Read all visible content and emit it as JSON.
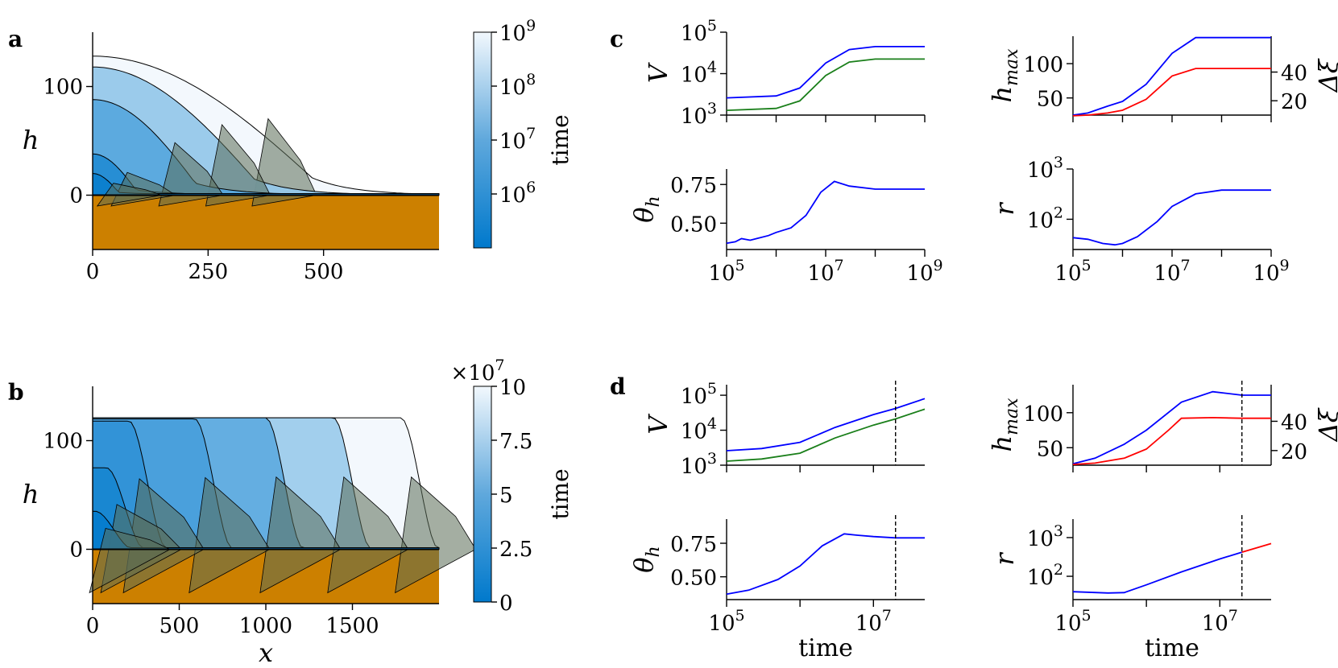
{
  "panels": {
    "a": {
      "letter": "a"
    },
    "b": {
      "letter": "b"
    },
    "c": {
      "letter": "c"
    },
    "d": {
      "letter": "d"
    }
  },
  "colors": {
    "substrate": "#CC8000",
    "blue": "#0000FF",
    "green": "#1A7F1A",
    "red": "#FF0000",
    "cmap_low": "#0079CC",
    "cmap_high": "#F2F8FD"
  },
  "chart_data": [
    {
      "id": "a",
      "type": "area",
      "xlabel": "",
      "ylabel": "h",
      "xlim": [
        0,
        750
      ],
      "ylim": [
        -50,
        150
      ],
      "xticks": [
        "0",
        "250",
        "500"
      ],
      "xtick_values": [
        0,
        250,
        500
      ],
      "yticks": [
        "0",
        "100"
      ],
      "ytick_values": [
        0,
        100
      ],
      "colorbar": {
        "label": "time",
        "scale": "log",
        "ticks": [
          "10^6",
          "10^7",
          "10^8",
          "10^9"
        ],
        "range": [
          100000,
          1000000000
        ]
      },
      "profiles": [
        {
          "time": 150000,
          "hmax": 20,
          "front": 45,
          "tail_depth": -5
        },
        {
          "time": 400000,
          "hmax": 38,
          "front": 75,
          "tail_depth": -15
        },
        {
          "time": 3000000,
          "hmax": 88,
          "front": 178,
          "tail_depth": -25
        },
        {
          "time": 30000000,
          "hmax": 118,
          "front": 280,
          "tail_depth": -35
        },
        {
          "time": 1000000000,
          "hmax": 128,
          "front": 380,
          "tail_depth": -47
        }
      ]
    },
    {
      "id": "b",
      "type": "area",
      "xlabel": "x",
      "ylabel": "h",
      "xlim": [
        0,
        2000
      ],
      "ylim": [
        -50,
        150
      ],
      "xticks": [
        "0",
        "500",
        "1000",
        "1500"
      ],
      "xtick_values": [
        0,
        500,
        1000,
        1500
      ],
      "yticks": [
        "0",
        "100"
      ],
      "ytick_values": [
        0,
        100
      ],
      "colorbar": {
        "label": "time",
        "scale": "linear",
        "multiplier": "×10^7",
        "ticks": [
          "0",
          "2.5",
          "5",
          "7.5",
          "10"
        ],
        "range": [
          0,
          10
        ]
      },
      "profiles": [
        {
          "time": 0.2,
          "hmax": 35,
          "front": 75
        },
        {
          "time": 1.0,
          "hmax": 75,
          "front": 140
        },
        {
          "time": 2.0,
          "hmax": 118,
          "front": 270
        },
        {
          "time": 3.0,
          "hmax": 120,
          "front": 650
        },
        {
          "time": 4.0,
          "hmax": 121,
          "front": 1060
        },
        {
          "time": 6.5,
          "hmax": 121,
          "front": 1450
        },
        {
          "time": 10.0,
          "hmax": 121,
          "front": 1840
        }
      ]
    },
    {
      "id": "c-V",
      "type": "line",
      "xscale": "log",
      "yscale": "log",
      "ylabel": "V",
      "xlim": [
        100000,
        1000000000
      ],
      "ylim": [
        1000,
        100000
      ],
      "yticks": [
        "10^3",
        "10^4",
        "10^5"
      ],
      "series": [
        {
          "x": [
            100000,
            1000000,
            3000000,
            10000000,
            30000000,
            100000000,
            1000000000
          ],
          "values": [
            2600,
            2900,
            4500,
            18000,
            38000,
            45000,
            45000
          ]
        },
        {
          "x": [
            100000,
            1000000,
            3000000,
            10000000,
            30000000,
            100000000,
            1000000000
          ],
          "values": [
            1300,
            1450,
            2200,
            9000,
            19000,
            22500,
            22500
          ]
        }
      ]
    },
    {
      "id": "c-hmax",
      "type": "line",
      "xscale": "log",
      "ylabel": "h_max",
      "ylabel_right": "Δξ",
      "xlim": [
        100000,
        1000000000
      ],
      "ylim": [
        25,
        140
      ],
      "yticks": [
        "50",
        "100"
      ],
      "yticks_right": [
        "20",
        "40"
      ],
      "series": [
        {
          "x": [
            100000,
            200000,
            500000,
            1000000,
            3000000,
            10000000,
            30000000,
            1000000000
          ],
          "values": [
            25,
            28,
            38,
            45,
            70,
            115,
            138,
            138
          ]
        },
        {
          "x": [
            100000,
            200000,
            500000,
            1000000,
            3000000,
            10000000,
            30000000,
            1000000000
          ],
          "values": [
            24,
            25,
            28,
            32,
            48,
            82,
            93,
            93
          ]
        }
      ]
    },
    {
      "id": "c-theta",
      "type": "line",
      "xscale": "log",
      "ylabel": "θ_h",
      "xlim": [
        100000,
        1000000000
      ],
      "ylim": [
        0.33,
        0.85
      ],
      "xticks": [
        "10^5",
        "10^7",
        "10^9"
      ],
      "yticks": [
        "0.50",
        "0.75"
      ],
      "series": [
        {
          "x": [
            100000,
            150000,
            200000,
            300000,
            400000,
            700000,
            1000000,
            2000000,
            4000000,
            8000000,
            15000000,
            30000000,
            100000000,
            1000000000
          ],
          "values": [
            0.37,
            0.38,
            0.4,
            0.39,
            0.4,
            0.42,
            0.44,
            0.47,
            0.55,
            0.7,
            0.77,
            0.74,
            0.72,
            0.72
          ]
        }
      ]
    },
    {
      "id": "c-r",
      "type": "line",
      "xscale": "log",
      "yscale": "log",
      "ylabel": "r",
      "xlim": [
        100000,
        1000000000
      ],
      "ylim": [
        25,
        1000
      ],
      "xticks": [
        "10^5",
        "10^7",
        "10^9"
      ],
      "yticks": [
        "10^2",
        "10^3"
      ],
      "series": [
        {
          "x": [
            100000,
            200000,
            400000,
            700000,
            1000000,
            2000000,
            5000000,
            10000000,
            30000000,
            100000000,
            1000000000
          ],
          "values": [
            43,
            40,
            33,
            31,
            33,
            45,
            90,
            180,
            320,
            380,
            380
          ]
        }
      ]
    },
    {
      "id": "d-V",
      "type": "line",
      "xscale": "log",
      "yscale": "log",
      "ylabel": "V",
      "xlim": [
        100000,
        50000000
      ],
      "ylim": [
        1000,
        200000
      ],
      "yticks": [
        "10^3",
        "10^4",
        "10^5"
      ],
      "vline_x": 20000000,
      "series": [
        {
          "x": [
            100000,
            300000,
            1000000,
            3000000,
            10000000,
            20000000,
            50000000
          ],
          "values": [
            2600,
            3000,
            4500,
            12000,
            28000,
            42000,
            80000
          ]
        },
        {
          "x": [
            100000,
            300000,
            1000000,
            3000000,
            10000000,
            20000000,
            50000000
          ],
          "values": [
            1300,
            1500,
            2200,
            6000,
            14000,
            21000,
            40000
          ]
        }
      ]
    },
    {
      "id": "d-hmax",
      "type": "line",
      "xscale": "log",
      "ylabel": "h_max",
      "ylabel_right": "Δξ",
      "xlim": [
        100000,
        50000000
      ],
      "ylim": [
        25,
        140
      ],
      "yticks": [
        "50",
        "100"
      ],
      "yticks_right": [
        "20",
        "40"
      ],
      "vline_x": 20000000,
      "series": [
        {
          "x": [
            100000,
            200000,
            500000,
            1000000,
            3000000,
            8000000,
            20000000,
            50000000
          ],
          "values": [
            27,
            35,
            55,
            75,
            115,
            130,
            125,
            125
          ]
        },
        {
          "x": [
            100000,
            200000,
            500000,
            1000000,
            2000000,
            3000000,
            8000000,
            20000000,
            50000000
          ],
          "values": [
            26,
            28,
            35,
            48,
            75,
            92,
            93,
            92,
            92
          ]
        }
      ]
    },
    {
      "id": "d-theta",
      "type": "line",
      "xscale": "log",
      "ylabel": "θ_h",
      "xlabel": "time",
      "xlim": [
        100000,
        50000000
      ],
      "ylim": [
        0.33,
        0.93
      ],
      "xticks": [
        "10^5",
        "10^7"
      ],
      "yticks": [
        "0.50",
        "0.75"
      ],
      "vline_x": 20000000,
      "series": [
        {
          "x": [
            100000,
            200000,
            500000,
            1000000,
            2000000,
            4000000,
            6000000,
            10000000,
            20000000,
            50000000
          ],
          "values": [
            0.37,
            0.4,
            0.48,
            0.58,
            0.73,
            0.82,
            0.81,
            0.8,
            0.79,
            0.79
          ]
        }
      ]
    },
    {
      "id": "d-r",
      "type": "line",
      "xscale": "log",
      "yscale": "log",
      "ylabel": "r",
      "xlabel": "time",
      "xlim": [
        100000,
        50000000
      ],
      "ylim": [
        25,
        3000
      ],
      "xticks": [
        "10^5",
        "10^7"
      ],
      "yticks": [
        "10^2",
        "10^3"
      ],
      "vline_x": 20000000,
      "series": [
        {
          "x": [
            100000,
            300000,
            500000,
            1000000,
            3000000,
            10000000,
            20000000
          ],
          "values": [
            40,
            37,
            38,
            60,
            130,
            280,
            420
          ]
        },
        {
          "x": [
            20000000,
            50000000
          ],
          "values": [
            420,
            700
          ]
        }
      ]
    }
  ]
}
